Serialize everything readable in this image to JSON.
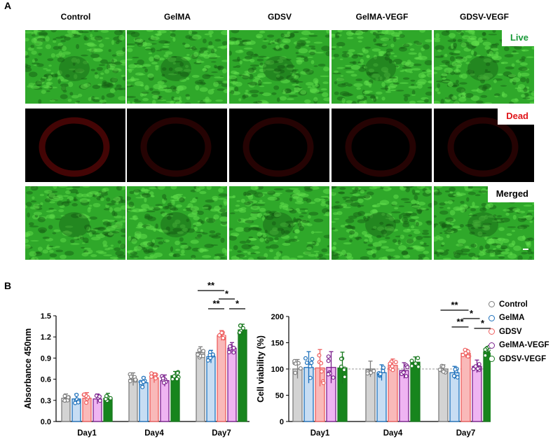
{
  "panel_a": {
    "label": "A",
    "columns": [
      "Control",
      "GelMA",
      "GDSV",
      "GelMA-VEGF",
      "GDSV-VEGF"
    ],
    "rows": [
      {
        "label": "Live",
        "label_color": "#1a9a3a",
        "kind": "live"
      },
      {
        "label": "Dead",
        "label_color": "#e0151a",
        "kind": "dead"
      },
      {
        "label": "Merged",
        "label_color": "#000000",
        "kind": "live"
      }
    ]
  },
  "panel_b": {
    "label": "B"
  },
  "colors": {
    "Control": {
      "edge": "#7d7d7d",
      "fill": "#d3d3d3"
    },
    "GelMA": {
      "edge": "#1c6fba",
      "fill": "#c7ddf3"
    },
    "GDSV": {
      "edge": "#ee5d5d",
      "fill": "#f9b9b9"
    },
    "GelMA-VEGF": {
      "edge": "#7a1f8c",
      "fill": "#efb4f2"
    },
    "GDSV-VEGF": {
      "edge": "#18781e",
      "fill": "#17851d"
    }
  },
  "legend": {
    "items": [
      "Control",
      "GelMA",
      "GDSV",
      "GelMA-VEGF",
      "GDSV-VEGF"
    ]
  },
  "chart_data": [
    {
      "type": "bar",
      "ylabel": "Absorbance 450nm",
      "xlabel": "",
      "categories": [
        "Day1",
        "Day4",
        "Day7"
      ],
      "ylim": [
        0,
        1.5
      ],
      "yticks": [
        "0.0",
        "0.3",
        "0.6",
        "0.9",
        "1.2",
        "1.5"
      ],
      "series": [
        {
          "name": "Control",
          "values": [
            0.33,
            0.6,
            0.98
          ],
          "err": [
            0.06,
            0.09,
            0.08
          ]
        },
        {
          "name": "GelMA",
          "values": [
            0.32,
            0.55,
            0.92
          ],
          "err": [
            0.07,
            0.08,
            0.09
          ]
        },
        {
          "name": "GDSV",
          "values": [
            0.33,
            0.62,
            1.22
          ],
          "err": [
            0.08,
            0.07,
            0.07
          ]
        },
        {
          "name": "GelMA-VEGF",
          "values": [
            0.32,
            0.58,
            1.04
          ],
          "err": [
            0.07,
            0.08,
            0.08
          ]
        },
        {
          "name": "GDSV-VEGF",
          "values": [
            0.33,
            0.65,
            1.3
          ],
          "err": [
            0.07,
            0.06,
            0.08
          ]
        }
      ],
      "significance": [
        {
          "from": "Control",
          "to": "GDSV",
          "label": "**"
        },
        {
          "from": "GelMA",
          "to": "GDSV",
          "label": "**"
        },
        {
          "from": "GDSV",
          "to": "GelMA-VEGF",
          "label": "*"
        },
        {
          "from": "GelMA-VEGF",
          "to": "GDSV-VEGF",
          "label": "*"
        }
      ]
    },
    {
      "type": "bar",
      "ylabel": "Cell viability (%)",
      "xlabel": "",
      "categories": [
        "Day1",
        "Day4",
        "Day7"
      ],
      "ylim": [
        0,
        200
      ],
      "yticks": [
        "0",
        "50",
        "100",
        "150",
        "200"
      ],
      "reference_line": 100,
      "series": [
        {
          "name": "Control",
          "values": [
            100,
            100,
            100
          ],
          "err": [
            18,
            15,
            8
          ]
        },
        {
          "name": "GelMA",
          "values": [
            103,
            93,
            93
          ],
          "err": [
            30,
            15,
            12
          ]
        },
        {
          "name": "GDSV",
          "values": [
            102,
            107,
            130
          ],
          "err": [
            35,
            12,
            8
          ]
        },
        {
          "name": "GelMA-VEGF",
          "values": [
            103,
            97,
            105
          ],
          "err": [
            30,
            15,
            12
          ]
        },
        {
          "name": "GDSV-VEGF",
          "values": [
            102,
            113,
            133
          ],
          "err": [
            30,
            10,
            10
          ]
        }
      ],
      "significance": [
        {
          "from": "Control",
          "to": "GDSV",
          "label": "**"
        },
        {
          "from": "GelMA",
          "to": "GDSV",
          "label": "**"
        },
        {
          "from": "GDSV",
          "to": "GelMA-VEGF",
          "label": "*"
        },
        {
          "from": "GelMA-VEGF",
          "to": "GDSV-VEGF",
          "label": "*"
        }
      ]
    }
  ]
}
